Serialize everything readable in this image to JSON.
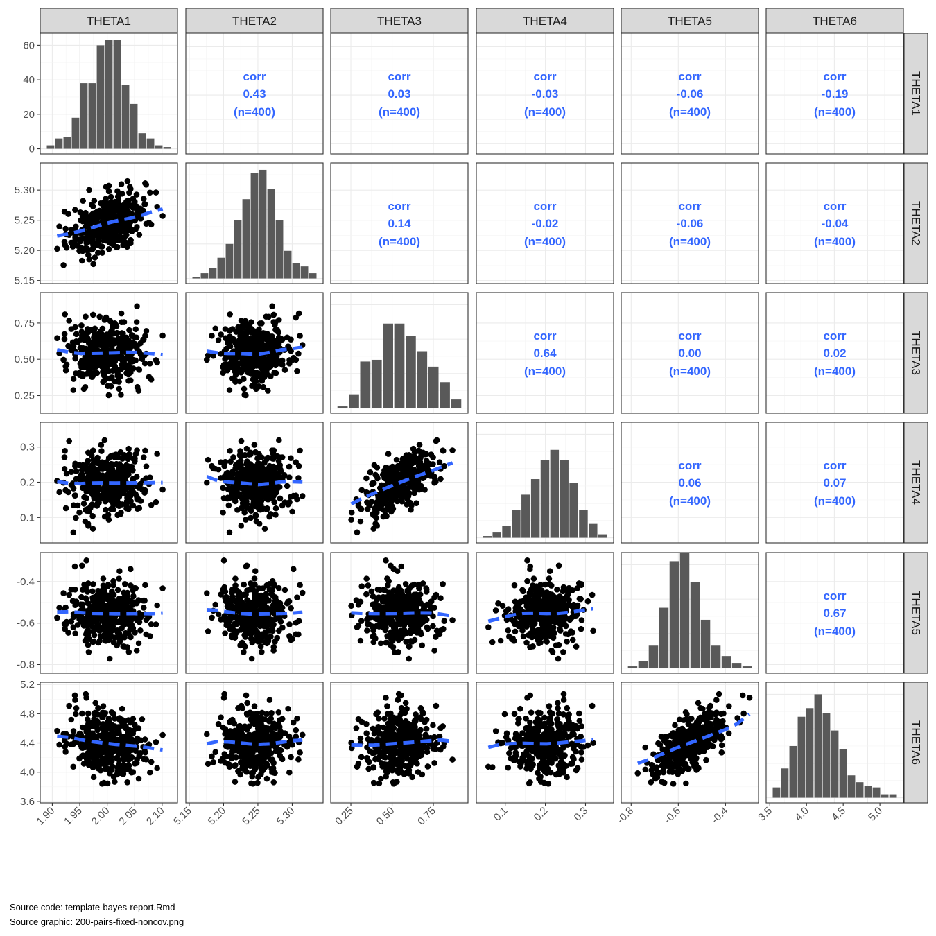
{
  "chart_data": {
    "type": "scatter",
    "variables": [
      "THETA1",
      "THETA2",
      "THETA3",
      "THETA4",
      "THETA5",
      "THETA6"
    ],
    "axes": [
      {
        "range": [
          1.878,
          2.128
        ],
        "ticks": [
          1.9,
          1.95,
          2.0,
          2.05,
          2.1
        ],
        "tick_labels": [
          "1.90",
          "1.95",
          "2.00",
          "2.05",
          "2.10"
        ]
      },
      {
        "range": [
          5.145,
          5.345
        ],
        "ticks": [
          5.15,
          5.2,
          5.25,
          5.3
        ],
        "tick_labels": [
          "5.15",
          "5.20",
          "5.25",
          "5.30"
        ]
      },
      {
        "range": [
          0.128,
          0.96
        ],
        "ticks": [
          0.25,
          0.5,
          0.75
        ],
        "tick_labels": [
          "0.25",
          "0.50",
          "0.75"
        ]
      },
      {
        "range": [
          0.028,
          0.37
        ],
        "ticks": [
          0.1,
          0.2,
          0.3
        ],
        "tick_labels": [
          "0.1",
          "0.2",
          "0.3"
        ]
      },
      {
        "range": [
          -0.842,
          -0.26
        ],
        "ticks": [
          -0.8,
          -0.6,
          -0.4
        ],
        "tick_labels": [
          "-0.8",
          "-0.6",
          "-0.4"
        ]
      },
      {
        "range": [
          3.58,
          5.23
        ],
        "ticks": [
          3.6,
          4.0,
          4.4,
          4.8,
          5.2
        ],
        "tick_labels": [
          "3.6",
          "4.0",
          "4.4",
          "4.8",
          "5.2"
        ]
      }
    ],
    "x_tick_axes": [
      {
        "ticks": [
          1.9,
          1.95,
          2.0,
          2.05,
          2.1
        ],
        "tick_labels": [
          "1.90",
          "1.95",
          "2.00",
          "2.05",
          "2.10"
        ]
      },
      {
        "ticks": [
          5.15,
          5.2,
          5.25,
          5.3
        ],
        "tick_labels": [
          "5.15",
          "5.20",
          "5.25",
          "5.30"
        ]
      },
      {
        "ticks": [
          0.25,
          0.5,
          0.75
        ],
        "tick_labels": [
          "0.25",
          "0.50",
          "0.75"
        ]
      },
      {
        "ticks": [
          0.1,
          0.2,
          0.3
        ],
        "tick_labels": [
          "0.1",
          "0.2",
          "0.3"
        ]
      },
      {
        "ticks": [
          -0.8,
          -0.6,
          -0.4
        ],
        "tick_labels": [
          "-0.8",
          "-0.6",
          "-0.4"
        ]
      },
      {
        "range": [
          3.45,
          5.32
        ],
        "ticks": [
          3.5,
          4.0,
          4.5,
          5.0
        ],
        "tick_labels": [
          "3.5",
          "4.0",
          "4.5",
          "5.0"
        ]
      }
    ],
    "histogram_count_axis": {
      "range": [
        -3,
        67
      ],
      "ticks": [
        0,
        20,
        40,
        60
      ],
      "tick_labels": [
        "0",
        "20",
        "40",
        "60"
      ]
    },
    "histograms": [
      {
        "variable": "THETA1",
        "counts": [
          2,
          6,
          7,
          18,
          38,
          38,
          60,
          63,
          63,
          37,
          26,
          9,
          6,
          2,
          1
        ]
      },
      {
        "variable": "THETA2",
        "counts": [
          1,
          3,
          6,
          12,
          20,
          34,
          46,
          61,
          63,
          52,
          34,
          16,
          9,
          7,
          3
        ]
      },
      {
        "variable": "THETA3",
        "counts": [
          1,
          8,
          27,
          28,
          49,
          49,
          42,
          33,
          24,
          15,
          5
        ]
      },
      {
        "variable": "THETA4",
        "counts": [
          1,
          3,
          7,
          16,
          25,
          34,
          45,
          51,
          45,
          32,
          16,
          8,
          2
        ]
      },
      {
        "variable": "THETA5",
        "counts": [
          1,
          4,
          13,
          35,
          62,
          67,
          50,
          28,
          13,
          7,
          3,
          1
        ]
      },
      {
        "variable": "THETA6",
        "counts": [
          6,
          17,
          30,
          47,
          52,
          60,
          49,
          39,
          28,
          13,
          9,
          7,
          6,
          2,
          2
        ]
      }
    ],
    "correlations": [
      {
        "row": "THETA1",
        "col": "THETA2",
        "label": "corr",
        "value": "0.43",
        "n": "(n=400)"
      },
      {
        "row": "THETA1",
        "col": "THETA3",
        "label": "corr",
        "value": "0.03",
        "n": "(n=400)"
      },
      {
        "row": "THETA1",
        "col": "THETA4",
        "label": "corr",
        "value": "-0.03",
        "n": "(n=400)"
      },
      {
        "row": "THETA1",
        "col": "THETA5",
        "label": "corr",
        "value": "-0.06",
        "n": "(n=400)"
      },
      {
        "row": "THETA1",
        "col": "THETA6",
        "label": "corr",
        "value": "-0.19",
        "n": "(n=400)"
      },
      {
        "row": "THETA2",
        "col": "THETA3",
        "label": "corr",
        "value": "0.14",
        "n": "(n=400)"
      },
      {
        "row": "THETA2",
        "col": "THETA4",
        "label": "corr",
        "value": "-0.02",
        "n": "(n=400)"
      },
      {
        "row": "THETA2",
        "col": "THETA5",
        "label": "corr",
        "value": "-0.06",
        "n": "(n=400)"
      },
      {
        "row": "THETA2",
        "col": "THETA6",
        "label": "corr",
        "value": "-0.04",
        "n": "(n=400)"
      },
      {
        "row": "THETA3",
        "col": "THETA4",
        "label": "corr",
        "value": "0.64",
        "n": "(n=400)"
      },
      {
        "row": "THETA3",
        "col": "THETA5",
        "label": "corr",
        "value": "0.00",
        "n": "(n=400)"
      },
      {
        "row": "THETA3",
        "col": "THETA6",
        "label": "corr",
        "value": "0.02",
        "n": "(n=400)"
      },
      {
        "row": "THETA4",
        "col": "THETA5",
        "label": "corr",
        "value": "0.06",
        "n": "(n=400)"
      },
      {
        "row": "THETA4",
        "col": "THETA6",
        "label": "corr",
        "value": "0.07",
        "n": "(n=400)"
      },
      {
        "row": "THETA5",
        "col": "THETA6",
        "label": "corr",
        "value": "0.67",
        "n": "(n=400)"
      }
    ],
    "points_per_panel": 400,
    "point_color": "#000000",
    "smooth_color": "#3366ff",
    "corr_text_color": "#3366ff",
    "bar_color": "#595959",
    "strip_fill": "#d9d9d9",
    "grid": true
  },
  "captions": {
    "source_code": "Source code: template-bayes-report.Rmd",
    "source_graphic": "Source graphic: 200-pairs-fixed-noncov.png"
  }
}
